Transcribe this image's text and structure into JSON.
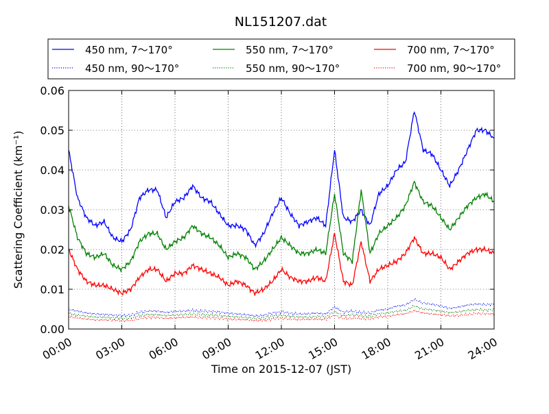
{
  "chart_data": {
    "type": "line",
    "title": "NL151207.dat",
    "xlabel": "Time on 2015-12-07 (JST)",
    "ylabel": "Scattering Coefficient (km⁻¹)",
    "xlim": [
      "2015-12-07 00:00",
      "2015-12-08 00:00"
    ],
    "ylim": [
      0.0,
      0.06
    ],
    "x_ticks": [
      "00:00",
      "03:00",
      "06:00",
      "09:00",
      "12:00",
      "15:00",
      "18:00",
      "21:00",
      "24:00"
    ],
    "y_ticks": [
      "0.00",
      "0.01",
      "0.02",
      "0.03",
      "0.04",
      "0.05",
      "0.06"
    ],
    "grid": true,
    "legend_position": "top, above plot",
    "x": [
      "00:00",
      "00:30",
      "01:00",
      "01:30",
      "02:00",
      "02:30",
      "03:00",
      "03:30",
      "04:00",
      "04:30",
      "05:00",
      "05:30",
      "06:00",
      "06:30",
      "07:00",
      "07:30",
      "08:00",
      "08:30",
      "09:00",
      "09:30",
      "10:00",
      "10:30",
      "11:00",
      "11:30",
      "12:00",
      "12:30",
      "13:00",
      "13:30",
      "14:00",
      "14:30",
      "15:00",
      "15:30",
      "16:00",
      "16:30",
      "17:00",
      "17:30",
      "18:00",
      "18:30",
      "19:00",
      "19:30",
      "20:00",
      "20:30",
      "21:00",
      "21:30",
      "22:00",
      "22:30",
      "23:00",
      "23:30",
      "24:00"
    ],
    "series": [
      {
        "name": "450 nm, 7～170°",
        "color": "#0000ff",
        "style": "solid",
        "values": [
          0.045,
          0.033,
          0.028,
          0.026,
          0.027,
          0.023,
          0.022,
          0.025,
          0.033,
          0.035,
          0.035,
          0.028,
          0.032,
          0.033,
          0.036,
          0.033,
          0.032,
          0.029,
          0.026,
          0.026,
          0.025,
          0.021,
          0.024,
          0.029,
          0.033,
          0.029,
          0.026,
          0.027,
          0.028,
          0.026,
          0.045,
          0.028,
          0.027,
          0.03,
          0.026,
          0.034,
          0.036,
          0.04,
          0.042,
          0.055,
          0.045,
          0.044,
          0.04,
          0.036,
          0.04,
          0.045,
          0.05,
          0.05,
          0.048
        ]
      },
      {
        "name": "450 nm, 90～170°",
        "color": "#0000ff",
        "style": "dotted",
        "values": [
          0.005,
          0.0045,
          0.004,
          0.0038,
          0.0037,
          0.0035,
          0.0033,
          0.0035,
          0.0042,
          0.0045,
          0.0045,
          0.0042,
          0.0044,
          0.0045,
          0.0047,
          0.0045,
          0.0044,
          0.0042,
          0.004,
          0.0038,
          0.0036,
          0.0033,
          0.0035,
          0.004,
          0.0043,
          0.004,
          0.0038,
          0.0038,
          0.004,
          0.0038,
          0.0055,
          0.0042,
          0.0045,
          0.0042,
          0.004,
          0.0048,
          0.005,
          0.0058,
          0.006,
          0.0075,
          0.0065,
          0.0062,
          0.0058,
          0.0052,
          0.0055,
          0.006,
          0.0063,
          0.0062,
          0.0062
        ]
      },
      {
        "name": "550 nm, 7～170°",
        "color": "#008000",
        "style": "solid",
        "values": [
          0.031,
          0.023,
          0.019,
          0.018,
          0.019,
          0.016,
          0.015,
          0.017,
          0.022,
          0.024,
          0.024,
          0.02,
          0.022,
          0.023,
          0.026,
          0.024,
          0.023,
          0.021,
          0.018,
          0.019,
          0.018,
          0.015,
          0.017,
          0.02,
          0.023,
          0.021,
          0.019,
          0.019,
          0.02,
          0.019,
          0.034,
          0.019,
          0.017,
          0.035,
          0.019,
          0.024,
          0.026,
          0.028,
          0.031,
          0.037,
          0.032,
          0.031,
          0.028,
          0.025,
          0.028,
          0.031,
          0.033,
          0.034,
          0.032
        ]
      },
      {
        "name": "550 nm, 90～170°",
        "color": "#008000",
        "style": "dotted",
        "values": [
          0.004,
          0.0035,
          0.0032,
          0.003,
          0.003,
          0.0028,
          0.0027,
          0.0028,
          0.0034,
          0.0036,
          0.0036,
          0.0034,
          0.0035,
          0.0036,
          0.0038,
          0.0036,
          0.0035,
          0.0034,
          0.0032,
          0.003,
          0.0029,
          0.0027,
          0.0028,
          0.0032,
          0.0035,
          0.0032,
          0.003,
          0.003,
          0.0032,
          0.003,
          0.0044,
          0.0033,
          0.0036,
          0.0034,
          0.0032,
          0.0038,
          0.004,
          0.0045,
          0.0047,
          0.0058,
          0.005,
          0.0048,
          0.0045,
          0.0041,
          0.0043,
          0.0047,
          0.0049,
          0.0048,
          0.0048
        ]
      },
      {
        "name": "700 nm, 7～170°",
        "color": "#ff0000",
        "style": "solid",
        "values": [
          0.02,
          0.015,
          0.012,
          0.011,
          0.011,
          0.01,
          0.009,
          0.01,
          0.013,
          0.015,
          0.015,
          0.012,
          0.014,
          0.014,
          0.016,
          0.015,
          0.014,
          0.013,
          0.011,
          0.012,
          0.011,
          0.009,
          0.01,
          0.012,
          0.015,
          0.013,
          0.012,
          0.012,
          0.013,
          0.012,
          0.024,
          0.012,
          0.011,
          0.022,
          0.012,
          0.015,
          0.016,
          0.017,
          0.019,
          0.023,
          0.019,
          0.019,
          0.018,
          0.015,
          0.017,
          0.019,
          0.02,
          0.02,
          0.019
        ]
      },
      {
        "name": "700 nm, 90～170°",
        "color": "#ff0000",
        "style": "dotted",
        "values": [
          0.0032,
          0.0028,
          0.0025,
          0.0023,
          0.0023,
          0.0022,
          0.0021,
          0.0022,
          0.0027,
          0.0029,
          0.0029,
          0.0027,
          0.0028,
          0.0029,
          0.003,
          0.0029,
          0.0028,
          0.0027,
          0.0025,
          0.0024,
          0.0023,
          0.0021,
          0.0022,
          0.0025,
          0.0028,
          0.0025,
          0.0024,
          0.0024,
          0.0025,
          0.0024,
          0.0035,
          0.0026,
          0.0028,
          0.0027,
          0.0025,
          0.003,
          0.0032,
          0.0036,
          0.0038,
          0.0046,
          0.004,
          0.0038,
          0.0036,
          0.0033,
          0.0034,
          0.0037,
          0.0039,
          0.0038,
          0.0038
        ]
      }
    ]
  }
}
